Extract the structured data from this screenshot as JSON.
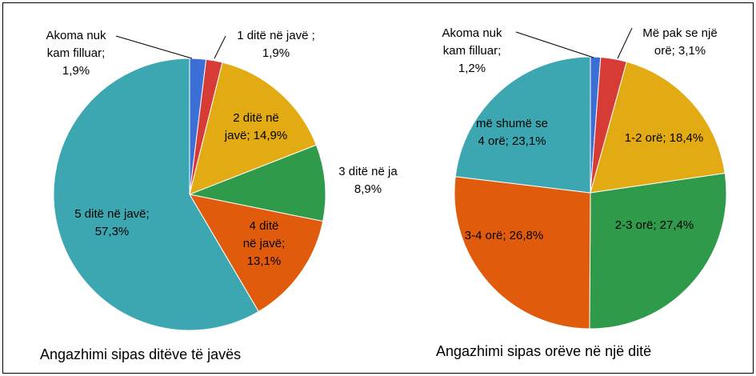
{
  "chart_data": [
    {
      "type": "pie",
      "title": "Angazhimi sipas ditëve të javës",
      "labels": [
        "Akoma nuk kam filluar; 1,9%",
        "1 ditë në javë ; 1,9%",
        "2 ditë në javë; 14,9%",
        "3 ditë në ja 8,9%",
        "4 ditë në javë; 13,1%",
        "5 ditë në javë; 57,3%"
      ],
      "values": [
        1.9,
        1.9,
        14.9,
        8.9,
        13.1,
        57.3
      ],
      "colors": [
        "#3b6fd6",
        "#d63b36",
        "#e2ab14",
        "#2f9a49",
        "#e05b0c",
        "#3ca7b1"
      ]
    },
    {
      "type": "pie",
      "title": "Angazhimi sipas orëve në një ditë",
      "labels": [
        "Akoma nuk kam filluar; 1,2%",
        "Më pak se një orë; 3,1%",
        "1-2 orë; 18,4%",
        "2-3 orë; 27,4%",
        "3-4 orë; 26,8%",
        "më shumë se 4 orë; 23,1%"
      ],
      "values": [
        1.2,
        3.1,
        18.4,
        27.4,
        26.8,
        23.1
      ],
      "colors": [
        "#3b6fd6",
        "#d63b36",
        "#e2ab14",
        "#2f9a49",
        "#e05b0c",
        "#3ca7b1"
      ]
    }
  ]
}
